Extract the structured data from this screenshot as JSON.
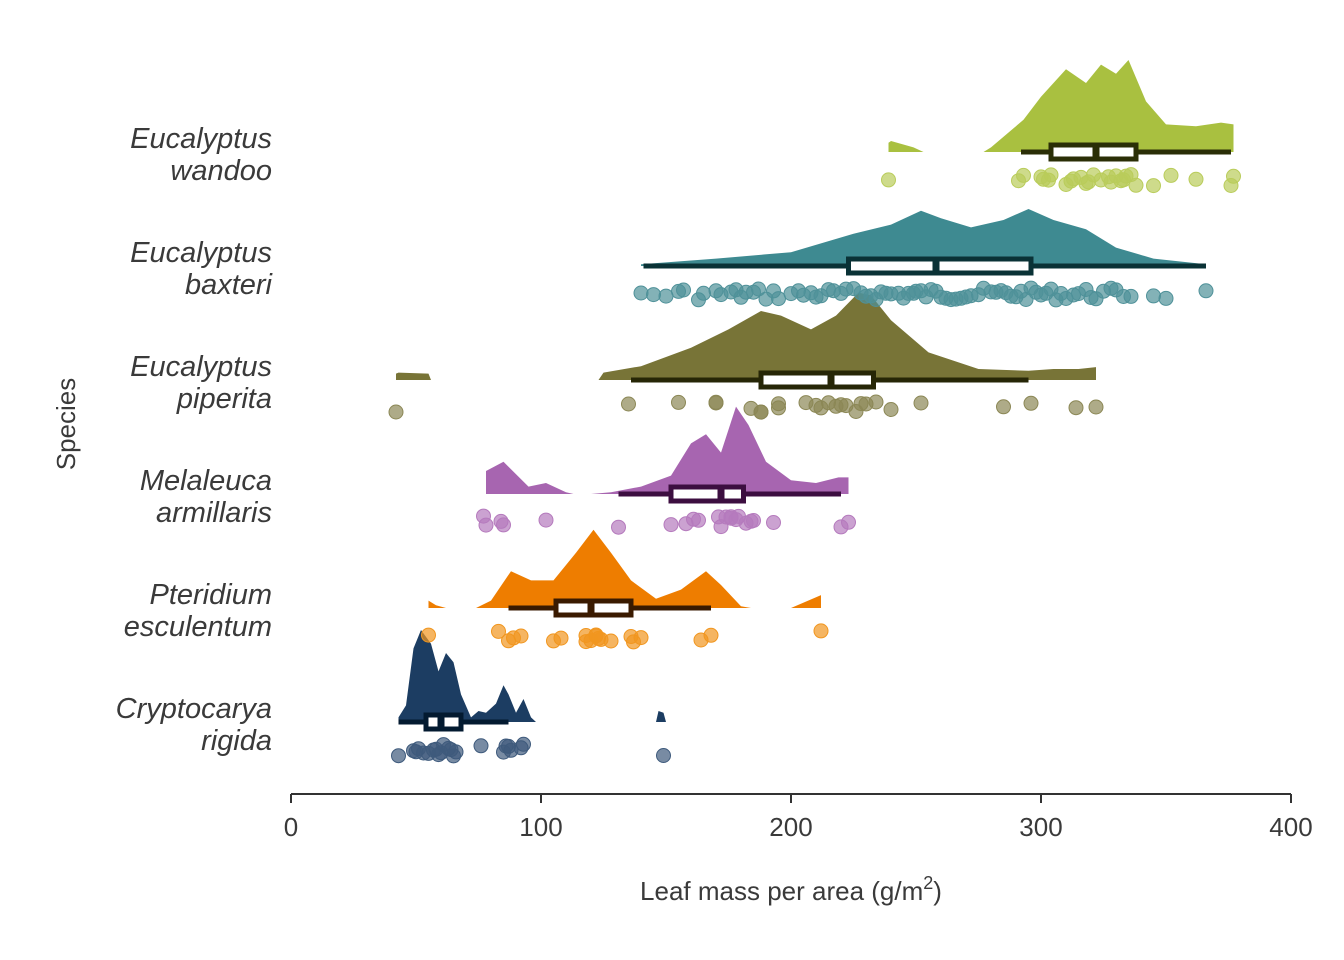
{
  "chart_data": {
    "type": "raincloud",
    "xlabel": "Leaf mass per area (g/m",
    "xlabel_sup": "2",
    "xlabel_suffix": ")",
    "ylabel": "Species",
    "xlim": [
      0,
      400
    ],
    "xticks": [
      0,
      100,
      200,
      300,
      400
    ],
    "xtick_labels": [
      "0",
      "100",
      "200",
      "300",
      "400"
    ],
    "species": [
      {
        "name_line1": "Eucalyptus",
        "name_line2": "wandoo",
        "fill": "#a9c040",
        "point": "#b9cc5a",
        "box": "#2a2e06",
        "points": [
          239,
          291,
          293,
          300,
          301,
          303,
          304,
          310,
          312,
          313,
          316,
          318,
          319,
          321,
          324,
          327,
          328,
          330,
          332,
          333,
          334,
          336,
          338,
          345,
          352,
          362,
          376,
          377
        ],
        "box_stats": {
          "min": 292,
          "q1": 304,
          "median": 322,
          "q3": 338,
          "max": 376
        },
        "density": [
          [
            239,
            0.1
          ],
          [
            240,
            0.12
          ],
          [
            249,
            0.05
          ],
          [
            253,
            0
          ],
          [
            277,
            0
          ],
          [
            280,
            0.05
          ],
          [
            293,
            0.35
          ],
          [
            300,
            0.6
          ],
          [
            310,
            0.9
          ],
          [
            318,
            0.75
          ],
          [
            324,
            0.95
          ],
          [
            330,
            0.85
          ],
          [
            335,
            1
          ],
          [
            342,
            0.55
          ],
          [
            350,
            0.3
          ],
          [
            362,
            0.28
          ],
          [
            372,
            0.32
          ],
          [
            377,
            0.3
          ]
        ]
      },
      {
        "name_line1": "Eucalyptus",
        "name_line2": "baxteri",
        "fill": "#3e8a91",
        "point": "#4f9199",
        "box": "#0a3236",
        "points": [
          140,
          145,
          150,
          155,
          157,
          163,
          165,
          170,
          172,
          176,
          178,
          180,
          182,
          185,
          187,
          190,
          193,
          195,
          200,
          203,
          205,
          208,
          210,
          212,
          215,
          217,
          220,
          222,
          225,
          228,
          230,
          232,
          234,
          236,
          238,
          240,
          243,
          245,
          247,
          249,
          250,
          252,
          254,
          256,
          258,
          260,
          262,
          264,
          266,
          268,
          270,
          272,
          275,
          277,
          280,
          282,
          284,
          286,
          288,
          290,
          292,
          294,
          296,
          298,
          300,
          302,
          304,
          306,
          308,
          310,
          313,
          315,
          318,
          320,
          322,
          325,
          328,
          330,
          333,
          336,
          345,
          350,
          366
        ],
        "box_stats": {
          "min": 141,
          "q1": 223,
          "median": 258,
          "q3": 296,
          "max": 366
        },
        "density": [
          [
            140,
            0.02
          ],
          [
            170,
            0.08
          ],
          [
            200,
            0.15
          ],
          [
            225,
            0.35
          ],
          [
            240,
            0.45
          ],
          [
            252,
            0.6
          ],
          [
            260,
            0.52
          ],
          [
            272,
            0.42
          ],
          [
            285,
            0.5
          ],
          [
            295,
            0.62
          ],
          [
            305,
            0.5
          ],
          [
            318,
            0.4
          ],
          [
            330,
            0.2
          ],
          [
            345,
            0.08
          ],
          [
            366,
            0.02
          ]
        ]
      },
      {
        "name_line1": "Eucalyptus",
        "name_line2": "piperita",
        "fill": "#787437",
        "point": "#8b8755",
        "box": "#262606",
        "points": [
          42,
          135,
          155,
          170,
          170,
          184,
          188,
          188,
          195,
          195,
          206,
          210,
          212,
          215,
          218,
          220,
          222,
          226,
          228,
          230,
          234,
          240,
          252,
          285,
          296,
          314,
          322
        ],
        "box_stats": {
          "min": 136,
          "q1": 188,
          "median": 216,
          "q3": 233,
          "max": 295
        },
        "density": [
          [
            42,
            0.07
          ],
          [
            43,
            0.08
          ],
          [
            55,
            0.07
          ],
          [
            56,
            0
          ],
          [
            123,
            0
          ],
          [
            125,
            0.08
          ],
          [
            140,
            0.15
          ],
          [
            160,
            0.35
          ],
          [
            175,
            0.55
          ],
          [
            188,
            0.75
          ],
          [
            196,
            0.7
          ],
          [
            208,
            0.55
          ],
          [
            218,
            0.7
          ],
          [
            227,
            0.95
          ],
          [
            232,
            0.92
          ],
          [
            240,
            0.65
          ],
          [
            255,
            0.3
          ],
          [
            275,
            0.12
          ],
          [
            295,
            0.1
          ],
          [
            305,
            0.12
          ],
          [
            315,
            0.12
          ],
          [
            322,
            0.14
          ]
        ]
      },
      {
        "name_line1": "Melaleuca",
        "name_line2": "armillaris",
        "fill": "#a765b0",
        "point": "#b57abd",
        "box": "#3c0e40",
        "points": [
          77,
          78,
          84,
          85,
          102,
          131,
          152,
          158,
          161,
          163,
          171,
          172,
          174,
          176,
          176,
          178,
          179,
          182,
          184,
          185,
          193,
          220,
          223
        ],
        "box_stats": {
          "min": 131,
          "q1": 152,
          "median": 172,
          "q3": 181,
          "max": 220
        },
        "density": [
          [
            78,
            0.25
          ],
          [
            85,
            0.35
          ],
          [
            95,
            0.08
          ],
          [
            102,
            0.12
          ],
          [
            110,
            0.02
          ],
          [
            113,
            0
          ],
          [
            120,
            0
          ],
          [
            128,
            0.02
          ],
          [
            140,
            0.08
          ],
          [
            152,
            0.2
          ],
          [
            160,
            0.55
          ],
          [
            166,
            0.65
          ],
          [
            172,
            0.45
          ],
          [
            178,
            0.95
          ],
          [
            183,
            0.75
          ],
          [
            190,
            0.35
          ],
          [
            200,
            0.15
          ],
          [
            210,
            0.12
          ],
          [
            219,
            0.18
          ],
          [
            223,
            0.18
          ]
        ]
      },
      {
        "name_line1": "Pteridium",
        "name_line2": "esculentum",
        "fill": "#ee7d00",
        "point": "#f1961f",
        "box": "#3a1a00",
        "points": [
          55,
          83,
          87,
          89,
          92,
          105,
          108,
          118,
          118,
          120,
          122,
          122,
          123,
          124,
          128,
          136,
          137,
          140,
          164,
          168,
          212
        ],
        "box_stats": {
          "min": 87,
          "q1": 106,
          "median": 120,
          "q3": 136,
          "max": 168
        },
        "density": [
          [
            55,
            0.08
          ],
          [
            58,
            0.03
          ],
          [
            62,
            0
          ],
          [
            74,
            0
          ],
          [
            80,
            0.08
          ],
          [
            88,
            0.4
          ],
          [
            96,
            0.3
          ],
          [
            105,
            0.3
          ],
          [
            114,
            0.6
          ],
          [
            121,
            0.85
          ],
          [
            128,
            0.6
          ],
          [
            136,
            0.3
          ],
          [
            146,
            0.1
          ],
          [
            156,
            0.2
          ],
          [
            166,
            0.4
          ],
          [
            172,
            0.25
          ],
          [
            180,
            0.02
          ],
          [
            184,
            0
          ],
          [
            200,
            0
          ],
          [
            212,
            0.14
          ]
        ]
      },
      {
        "name_line1": "Cryptocarya",
        "name_line2": "rigida",
        "fill": "#1c3d62",
        "point": "#3e5a7c",
        "box": "#031a30",
        "points": [
          43,
          49,
          50,
          51,
          53,
          55,
          57,
          58,
          59,
          60,
          61,
          63,
          64,
          65,
          66,
          76,
          85,
          86,
          87,
          88,
          92,
          93,
          149
        ],
        "box_stats": {
          "min": 43,
          "q1": 54,
          "median": 60,
          "q3": 68,
          "max": 87
        },
        "density": [
          [
            43,
            0.05
          ],
          [
            46,
            0.18
          ],
          [
            49,
            0.8
          ],
          [
            52,
            1.0
          ],
          [
            56,
            0.85
          ],
          [
            59,
            0.55
          ],
          [
            62,
            0.75
          ],
          [
            65,
            0.65
          ],
          [
            68,
            0.3
          ],
          [
            72,
            0.05
          ],
          [
            75,
            0.12
          ],
          [
            78,
            0.1
          ],
          [
            82,
            0.2
          ],
          [
            85,
            0.4
          ],
          [
            87,
            0.3
          ],
          [
            90,
            0.1
          ],
          [
            93,
            0.25
          ],
          [
            96,
            0.05
          ],
          [
            98,
            0
          ],
          [
            146,
            0
          ],
          [
            147,
            0.12
          ],
          [
            149,
            0.1
          ],
          [
            150,
            0
          ]
        ]
      }
    ]
  }
}
